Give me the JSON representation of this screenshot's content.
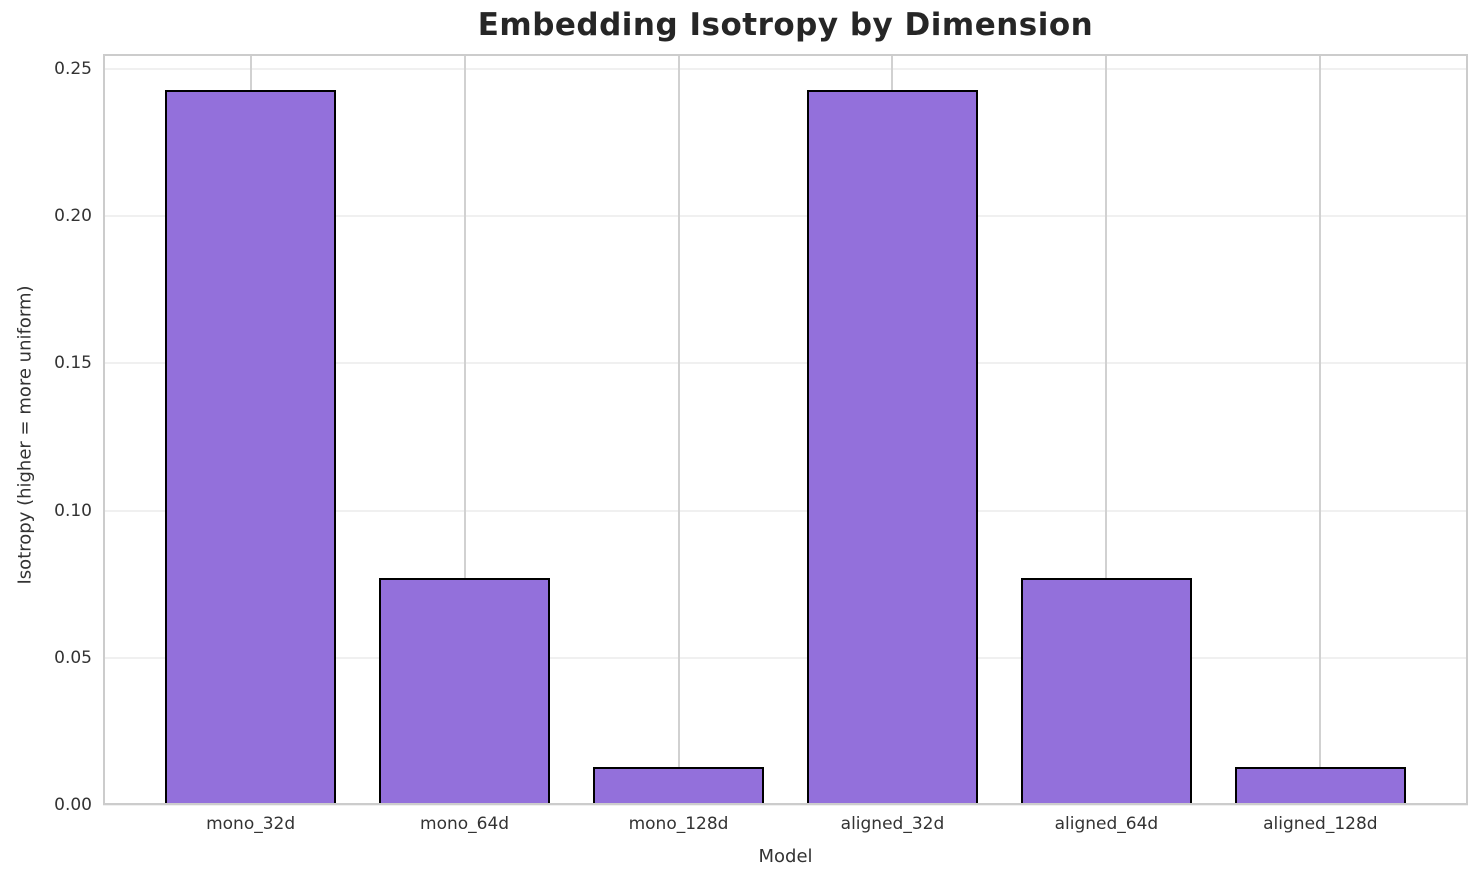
{
  "chart_data": {
    "type": "bar",
    "title": "Embedding Isotropy by Dimension",
    "xlabel": "Model",
    "ylabel": "Isotropy (higher = more uniform)",
    "categories": [
      "mono_32d",
      "mono_64d",
      "mono_128d",
      "aligned_32d",
      "aligned_64d",
      "aligned_128d"
    ],
    "values": [
      0.243,
      0.077,
      0.013,
      0.243,
      0.077,
      0.013
    ],
    "ylim": [
      0,
      0.2551
    ],
    "yticks": [
      0,
      0.05,
      0.1,
      0.15,
      0.2,
      0.25
    ],
    "ytick_labels": [
      "0.00",
      "0.05",
      "0.10",
      "0.15",
      "0.20",
      "0.25"
    ],
    "grid": "on",
    "legend": "none",
    "bar_fill_color": "#9370DB",
    "bar_edge_color": "#000000"
  }
}
